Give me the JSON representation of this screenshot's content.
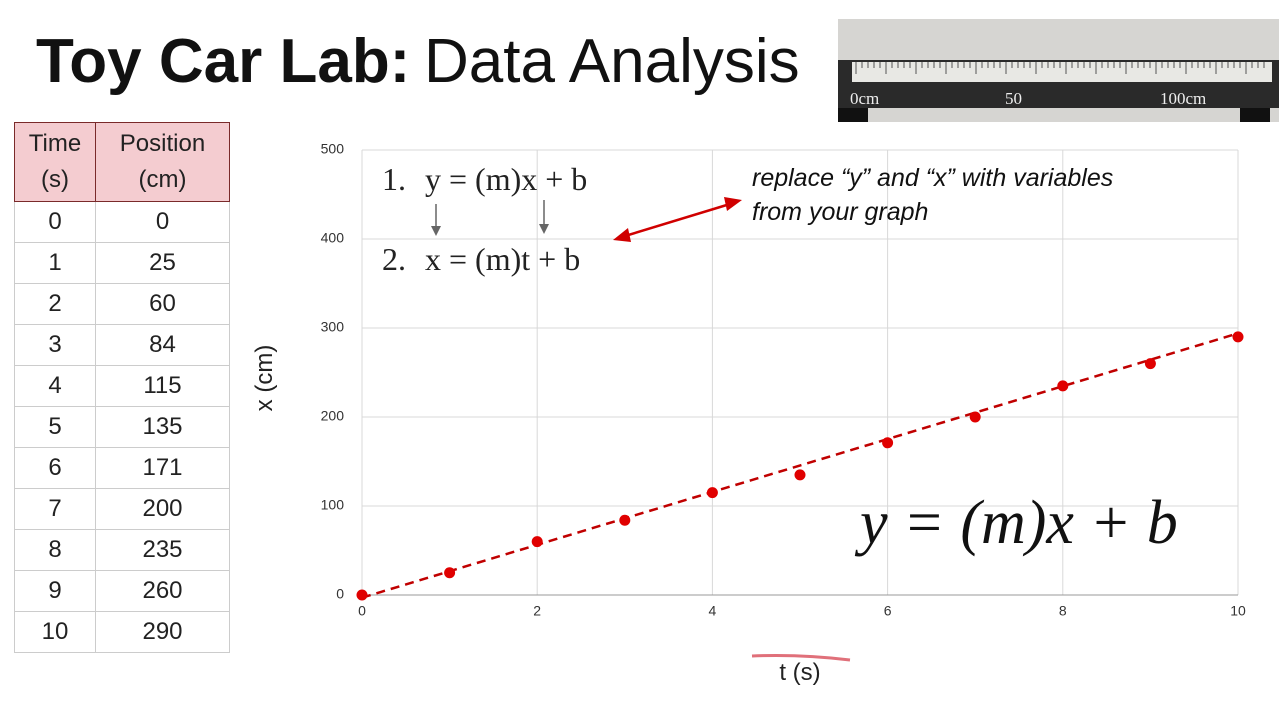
{
  "title": {
    "bold": "Toy Car Lab:",
    "rest": "Data Analysis"
  },
  "photo": {
    "labels": [
      "0cm",
      "50",
      "100cm"
    ]
  },
  "table": {
    "headers": [
      "Time (s)",
      "Position (cm)"
    ],
    "rows": [
      [
        "0",
        "0"
      ],
      [
        "1",
        "25"
      ],
      [
        "2",
        "60"
      ],
      [
        "3",
        "84"
      ],
      [
        "4",
        "115"
      ],
      [
        "5",
        "135"
      ],
      [
        "6",
        "171"
      ],
      [
        "7",
        "200"
      ],
      [
        "8",
        "235"
      ],
      [
        "9",
        "260"
      ],
      [
        "10",
        "290"
      ]
    ]
  },
  "equations": {
    "step1_number": "1.",
    "step1": "y = (m)x + b",
    "step2_number": "2.",
    "step2": "x = (m)t + b",
    "note": [
      "replace “y” and “x” with variables",
      "from your graph"
    ],
    "big": "y = (m)x + b"
  },
  "chart_data": {
    "type": "scatter",
    "x_label": "t (s)",
    "y_label": "x (cm)",
    "x": [
      0,
      1,
      2,
      3,
      4,
      5,
      6,
      7,
      8,
      9,
      10
    ],
    "values": [
      0,
      25,
      60,
      84,
      115,
      135,
      171,
      200,
      235,
      260,
      290
    ],
    "color": "#e00000",
    "trendline": {
      "x": [
        0,
        10
      ],
      "values": [
        -3,
        294
      ],
      "color": "#c00000",
      "dashed": true
    },
    "xlim": [
      0,
      10
    ],
    "ylim": [
      0,
      500
    ],
    "xticks": [
      0,
      2,
      4,
      6,
      8,
      10
    ],
    "yticks": [
      0,
      100,
      200,
      300,
      400,
      500
    ],
    "grid": true
  }
}
